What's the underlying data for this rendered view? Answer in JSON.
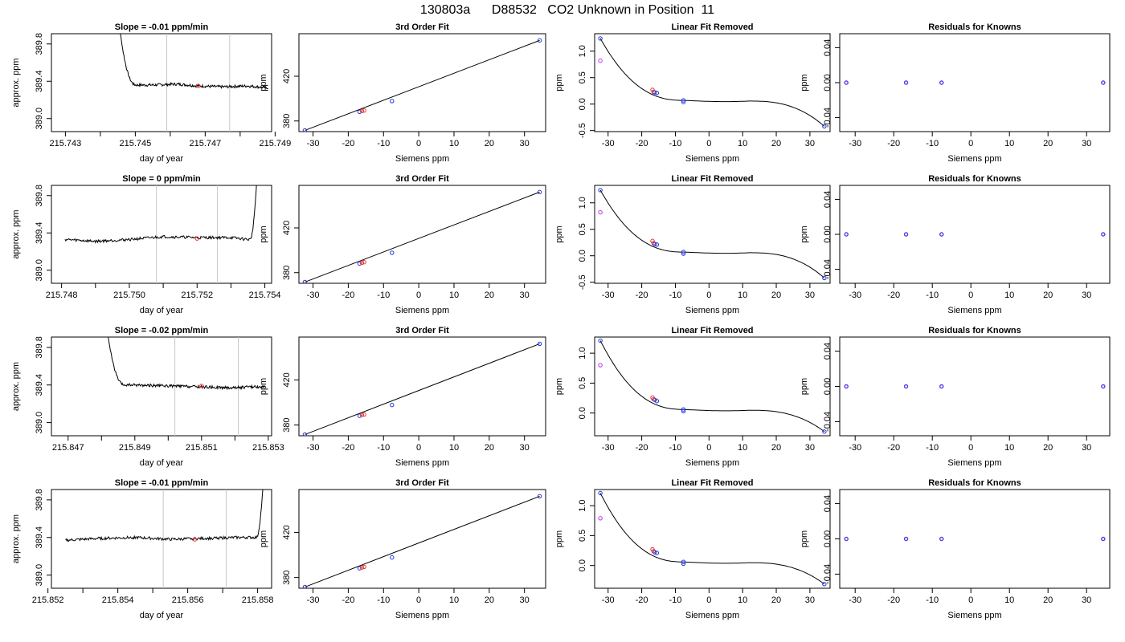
{
  "figure": {
    "title": "130803a      D88532   CO2 Unknown in Position  11"
  },
  "colors": {
    "line": "#000000",
    "marker_red": "#e8332a",
    "marker_blue": "#2233dd",
    "marker_magenta": "#bb33ee",
    "vline": "#c8c8c8"
  },
  "chart_data": [
    {
      "row": 0,
      "col": 0,
      "type": "line",
      "title": "Slope =  -0.01  ppm/min",
      "xlabel": "day of year",
      "ylabel": "approx. ppm",
      "xlim": [
        215.7426,
        215.7489
      ],
      "ylim": [
        388.86,
        389.91
      ],
      "xticks": [
        "215.743",
        "215.745",
        "215.747",
        "215.749"
      ],
      "xtick_values": [
        215.743,
        215.745,
        215.747,
        215.749
      ],
      "xminor": [
        215.744,
        215.746,
        215.748
      ],
      "yticks": [
        "389.0",
        "389.4",
        "389.8"
      ],
      "ytick_values": [
        389.0,
        389.4,
        389.8
      ],
      "trace": {
        "start": 215.7444,
        "end": 215.7488,
        "drop_start": 389.9,
        "plateau": 389.35,
        "rise_end": null,
        "bumps": [
          [
            215.7455,
            389.36
          ],
          [
            215.7462,
            389.37
          ],
          [
            215.7468,
            389.35
          ],
          [
            215.7475,
            389.34
          ],
          [
            215.7482,
            389.35
          ],
          [
            215.7488,
            389.33
          ]
        ]
      },
      "vlines": [
        215.7459,
        215.7477
      ],
      "marker": {
        "x": 215.7468,
        "y": 389.35
      }
    },
    {
      "row": 0,
      "col": 1,
      "type": "scatter",
      "title": "3rd Order Fit",
      "xlabel": "Siemens ppm",
      "ylabel": "ppm",
      "xlim": [
        -34,
        36
      ],
      "ylim": [
        370.5,
        458
      ],
      "xticks": [
        "-30",
        "-20",
        "-10",
        "0",
        "10",
        "20",
        "30"
      ],
      "xtick_values": [
        -30,
        -20,
        -10,
        0,
        10,
        20,
        30
      ],
      "yticks": [
        "380",
        "420"
      ],
      "ytick_values": [
        380,
        420
      ],
      "points": [
        [
          -32.3,
          371.6
        ],
        [
          -16.8,
          388.2
        ],
        [
          -16.1,
          388.9
        ],
        [
          -15.5,
          389.4
        ],
        [
          -7.6,
          397.8
        ],
        [
          34.3,
          452.0
        ]
      ],
      "fit": "line"
    },
    {
      "row": 0,
      "col": 2,
      "type": "scatter",
      "title": "Linear Fit Removed",
      "xlabel": "Siemens ppm",
      "ylabel": "ppm",
      "xlim": [
        -34,
        36
      ],
      "ylim": [
        -0.52,
        1.33
      ],
      "xticks": [
        "-30",
        "-20",
        "-10",
        "0",
        "10",
        "20",
        "30"
      ],
      "xtick_values": [
        -30,
        -20,
        -10,
        0,
        10,
        20,
        30
      ],
      "yticks": [
        "-0.5",
        "0.0",
        "0.5",
        "1.0"
      ],
      "ytick_values": [
        -0.5,
        0.0,
        0.5,
        1.0
      ],
      "points": [
        [
          -32.3,
          1.24
        ],
        [
          -32.3,
          0.82
        ],
        [
          -16.8,
          0.27
        ],
        [
          -16.5,
          0.23
        ],
        [
          -16.1,
          0.22
        ],
        [
          -15.5,
          0.21
        ],
        [
          -7.6,
          0.07
        ],
        [
          -7.6,
          0.04
        ],
        [
          34.3,
          -0.42
        ]
      ],
      "fit": "cubic"
    },
    {
      "row": 0,
      "col": 3,
      "type": "scatter",
      "title": "Residuals for Knowns",
      "xlabel": "Siemens ppm",
      "ylabel": "ppm",
      "xlim": [
        -34,
        36
      ],
      "ylim": [
        -0.056,
        0.056
      ],
      "xticks": [
        "-30",
        "-20",
        "-10",
        "0",
        "10",
        "20",
        "30"
      ],
      "xtick_values": [
        -30,
        -20,
        -10,
        0,
        10,
        20,
        30
      ],
      "yticks": [
        "-0.04",
        "0.00",
        "0.04"
      ],
      "ytick_values": [
        -0.04,
        0.0,
        0.04
      ],
      "points": [
        [
          -32.3,
          0
        ],
        [
          -16.8,
          0
        ],
        [
          -7.6,
          0
        ],
        [
          34.3,
          0
        ]
      ],
      "fit": "none"
    },
    {
      "row": 1,
      "col": 0,
      "type": "line",
      "title": "Slope =  0  ppm/min",
      "xlabel": "day of year",
      "ylabel": "approx. ppm",
      "xlim": [
        215.7477,
        215.7542
      ],
      "ylim": [
        388.86,
        389.91
      ],
      "xticks": [
        "215.748",
        "215.750",
        "215.752",
        "215.754"
      ],
      "xtick_values": [
        215.748,
        215.75,
        215.752,
        215.754
      ],
      "xminor": [
        215.749,
        215.751,
        215.753
      ],
      "yticks": [
        "389.0",
        "389.4",
        "389.8"
      ],
      "ytick_values": [
        389.0,
        389.4,
        389.8
      ],
      "trace": {
        "start": 215.7481,
        "end": 215.7538,
        "drop_start": null,
        "plateau": 389.33,
        "rise_end": 389.91,
        "bumps": [
          [
            215.7481,
            389.33
          ],
          [
            215.749,
            389.31
          ],
          [
            215.75,
            389.33
          ],
          [
            215.751,
            389.36
          ],
          [
            215.752,
            389.35
          ],
          [
            215.753,
            389.35
          ],
          [
            215.7535,
            389.33
          ]
        ]
      },
      "vlines": [
        215.7508,
        215.7526
      ],
      "marker": {
        "x": 215.752,
        "y": 389.34
      }
    },
    {
      "row": 1,
      "col": 1,
      "type": "scatter",
      "title": "3rd Order Fit",
      "xlabel": "Siemens ppm",
      "ylabel": "ppm",
      "xlim": [
        -34,
        36
      ],
      "ylim": [
        370.5,
        458
      ],
      "xticks": [
        "-30",
        "-20",
        "-10",
        "0",
        "10",
        "20",
        "30"
      ],
      "xtick_values": [
        -30,
        -20,
        -10,
        0,
        10,
        20,
        30
      ],
      "yticks": [
        "380",
        "420"
      ],
      "ytick_values": [
        380,
        420
      ],
      "points": [
        [
          -32.3,
          371.6
        ],
        [
          -16.8,
          388.2
        ],
        [
          -16.1,
          388.9
        ],
        [
          -15.5,
          389.4
        ],
        [
          -7.6,
          397.8
        ],
        [
          34.3,
          452.0
        ]
      ],
      "fit": "line"
    },
    {
      "row": 1,
      "col": 2,
      "type": "scatter",
      "title": "Linear Fit Removed",
      "xlabel": "Siemens ppm",
      "ylabel": "ppm",
      "xlim": [
        -34,
        36
      ],
      "ylim": [
        -0.52,
        1.33
      ],
      "xticks": [
        "-30",
        "-20",
        "-10",
        "0",
        "10",
        "20",
        "30"
      ],
      "xtick_values": [
        -30,
        -20,
        -10,
        0,
        10,
        20,
        30
      ],
      "yticks": [
        "-0.5",
        "0.0",
        "0.5",
        "1.0"
      ],
      "ytick_values": [
        -0.5,
        0.0,
        0.5,
        1.0
      ],
      "points": [
        [
          -32.3,
          1.24
        ],
        [
          -32.3,
          0.82
        ],
        [
          -16.8,
          0.28
        ],
        [
          -16.5,
          0.24
        ],
        [
          -16.1,
          0.22
        ],
        [
          -15.5,
          0.21
        ],
        [
          -7.6,
          0.07
        ],
        [
          -7.6,
          0.04
        ],
        [
          34.3,
          -0.42
        ]
      ],
      "fit": "cubic"
    },
    {
      "row": 1,
      "col": 3,
      "type": "scatter",
      "title": "Residuals for Knowns",
      "xlabel": "Siemens ppm",
      "ylabel": "ppm",
      "xlim": [
        -34,
        36
      ],
      "ylim": [
        -0.056,
        0.056
      ],
      "xticks": [
        "-30",
        "-20",
        "-10",
        "0",
        "10",
        "20",
        "30"
      ],
      "xtick_values": [
        -30,
        -20,
        -10,
        0,
        10,
        20,
        30
      ],
      "yticks": [
        "-0.04",
        "0.00",
        "0.04"
      ],
      "ytick_values": [
        -0.04,
        0.0,
        0.04
      ],
      "points": [
        [
          -32.3,
          0
        ],
        [
          -16.8,
          0
        ],
        [
          -7.6,
          0
        ],
        [
          34.3,
          0
        ]
      ],
      "fit": "none"
    },
    {
      "row": 2,
      "col": 0,
      "type": "line",
      "title": "Slope =  -0.02  ppm/min",
      "xlabel": "day of year",
      "ylabel": "approx. ppm",
      "xlim": [
        215.8465,
        215.8531
      ],
      "ylim": [
        388.86,
        389.91
      ],
      "xticks": [
        "215.847",
        "215.849",
        "215.851",
        "215.853"
      ],
      "xtick_values": [
        215.847,
        215.849,
        215.851,
        215.853
      ],
      "xminor": [
        215.848,
        215.85,
        215.852
      ],
      "yticks": [
        "389.0",
        "389.4",
        "389.8"
      ],
      "ytick_values": [
        389.0,
        389.4,
        389.8
      ],
      "trace": {
        "start": 215.848,
        "end": 215.8529,
        "drop_start": 389.9,
        "plateau": 389.39,
        "rise_end": null,
        "bumps": [
          [
            215.849,
            389.4
          ],
          [
            215.85,
            389.39
          ],
          [
            215.851,
            389.38
          ],
          [
            215.8518,
            389.37
          ],
          [
            215.8525,
            389.38
          ],
          [
            215.8529,
            389.38
          ]
        ]
      },
      "vlines": [
        215.8502,
        215.8521
      ],
      "marker": {
        "x": 215.851,
        "y": 389.39
      }
    },
    {
      "row": 2,
      "col": 1,
      "type": "scatter",
      "title": "3rd Order Fit",
      "xlabel": "Siemens ppm",
      "ylabel": "ppm",
      "xlim": [
        -34,
        36
      ],
      "ylim": [
        370.5,
        458
      ],
      "xticks": [
        "-30",
        "-20",
        "-10",
        "0",
        "10",
        "20",
        "30"
      ],
      "xtick_values": [
        -30,
        -20,
        -10,
        0,
        10,
        20,
        30
      ],
      "yticks": [
        "380",
        "420"
      ],
      "ytick_values": [
        380,
        420
      ],
      "points": [
        [
          -32.3,
          371.6
        ],
        [
          -16.8,
          388.2
        ],
        [
          -16.1,
          388.9
        ],
        [
          -15.5,
          389.4
        ],
        [
          -7.6,
          397.8
        ],
        [
          34.3,
          452.0
        ]
      ],
      "fit": "line"
    },
    {
      "row": 2,
      "col": 2,
      "type": "scatter",
      "title": "Linear Fit Removed",
      "xlabel": "Siemens ppm",
      "ylabel": "ppm",
      "xlim": [
        -34,
        36
      ],
      "ylim": [
        -0.38,
        1.27
      ],
      "xticks": [
        "-30",
        "-20",
        "-10",
        "0",
        "10",
        "20",
        "30"
      ],
      "xtick_values": [
        -30,
        -20,
        -10,
        0,
        10,
        20,
        30
      ],
      "yticks": [
        "0.0",
        "0.5",
        "1.0"
      ],
      "ytick_values": [
        0.0,
        0.5,
        1.0
      ],
      "points": [
        [
          -32.3,
          1.21
        ],
        [
          -32.3,
          0.8
        ],
        [
          -16.8,
          0.26
        ],
        [
          -16.5,
          0.23
        ],
        [
          -16.1,
          0.22
        ],
        [
          -15.5,
          0.2
        ],
        [
          -7.6,
          0.06
        ],
        [
          -7.6,
          0.03
        ],
        [
          34.3,
          -0.31
        ]
      ],
      "fit": "cubic"
    },
    {
      "row": 2,
      "col": 3,
      "type": "scatter",
      "title": "Residuals for Knowns",
      "xlabel": "Siemens ppm",
      "ylabel": "ppm",
      "xlim": [
        -34,
        36
      ],
      "ylim": [
        -0.056,
        0.056
      ],
      "xticks": [
        "-30",
        "-20",
        "-10",
        "0",
        "10",
        "20",
        "30"
      ],
      "xtick_values": [
        -30,
        -20,
        -10,
        0,
        10,
        20,
        30
      ],
      "yticks": [
        "-0.04",
        "0.00",
        "0.04"
      ],
      "ytick_values": [
        -0.04,
        0.0,
        0.04
      ],
      "points": [
        [
          -32.3,
          0
        ],
        [
          -16.8,
          0
        ],
        [
          -7.6,
          0
        ],
        [
          34.3,
          0
        ]
      ],
      "fit": "none"
    },
    {
      "row": 3,
      "col": 0,
      "type": "line",
      "title": "Slope =  -0.01  ppm/min",
      "xlabel": "day of year",
      "ylabel": "approx. ppm",
      "xlim": [
        215.8521,
        215.8584
      ],
      "ylim": [
        388.86,
        389.91
      ],
      "xticks": [
        "215.852",
        "215.854",
        "215.856",
        "215.858"
      ],
      "xtick_values": [
        215.852,
        215.854,
        215.856,
        215.858
      ],
      "xminor": [
        215.853,
        215.855,
        215.857
      ],
      "yticks": [
        "389.0",
        "389.4",
        "389.8"
      ],
      "ytick_values": [
        389.0,
        389.4,
        389.8
      ],
      "trace": {
        "start": 215.8525,
        "end": 215.8582,
        "drop_start": null,
        "plateau": 389.38,
        "rise_end": 389.91,
        "bumps": [
          [
            215.8525,
            389.37
          ],
          [
            215.8535,
            389.39
          ],
          [
            215.8545,
            389.4
          ],
          [
            215.8555,
            389.38
          ],
          [
            215.8565,
            389.39
          ],
          [
            215.8575,
            389.4
          ],
          [
            215.8579,
            389.4
          ]
        ]
      },
      "vlines": [
        215.8553,
        215.8571
      ],
      "marker": {
        "x": 215.8562,
        "y": 389.38
      }
    },
    {
      "row": 3,
      "col": 1,
      "type": "scatter",
      "title": "3rd Order Fit",
      "xlabel": "Siemens ppm",
      "ylabel": "ppm",
      "xlim": [
        -34,
        36
      ],
      "ylim": [
        370.5,
        458
      ],
      "xticks": [
        "-30",
        "-20",
        "-10",
        "0",
        "10",
        "20",
        "30"
      ],
      "xtick_values": [
        -30,
        -20,
        -10,
        0,
        10,
        20,
        30
      ],
      "yticks": [
        "380",
        "420"
      ],
      "ytick_values": [
        380,
        420
      ],
      "points": [
        [
          -32.3,
          371.6
        ],
        [
          -16.8,
          388.2
        ],
        [
          -16.1,
          388.9
        ],
        [
          -15.5,
          389.4
        ],
        [
          -7.6,
          397.8
        ],
        [
          34.3,
          452.0
        ]
      ],
      "fit": "line"
    },
    {
      "row": 3,
      "col": 2,
      "type": "scatter",
      "title": "Linear Fit Removed",
      "xlabel": "Siemens ppm",
      "ylabel": "ppm",
      "xlim": [
        -34,
        36
      ],
      "ylim": [
        -0.38,
        1.27
      ],
      "xticks": [
        "-30",
        "-20",
        "-10",
        "0",
        "10",
        "20",
        "30"
      ],
      "xtick_values": [
        -30,
        -20,
        -10,
        0,
        10,
        20,
        30
      ],
      "yticks": [
        "0.0",
        "0.5",
        "1.0"
      ],
      "ytick_values": [
        0.0,
        0.5,
        1.0
      ],
      "points": [
        [
          -32.3,
          1.21
        ],
        [
          -32.3,
          0.79
        ],
        [
          -16.8,
          0.27
        ],
        [
          -16.5,
          0.24
        ],
        [
          -16.1,
          0.22
        ],
        [
          -15.5,
          0.21
        ],
        [
          -7.6,
          0.06
        ],
        [
          -7.6,
          0.03
        ],
        [
          34.3,
          -0.31
        ]
      ],
      "fit": "cubic"
    },
    {
      "row": 3,
      "col": 3,
      "type": "scatter",
      "title": "Residuals for Knowns",
      "xlabel": "Siemens ppm",
      "ylabel": "ppm",
      "xlim": [
        -34,
        36
      ],
      "ylim": [
        -0.056,
        0.056
      ],
      "xticks": [
        "-30",
        "-20",
        "-10",
        "0",
        "10",
        "20",
        "30"
      ],
      "xtick_values": [
        -30,
        -20,
        -10,
        0,
        10,
        20,
        30
      ],
      "yticks": [
        "-0.04",
        "0.00",
        "0.04"
      ],
      "ytick_values": [
        -0.04,
        0.0,
        0.04
      ],
      "points": [
        [
          -32.3,
          0
        ],
        [
          -16.8,
          0
        ],
        [
          -7.6,
          0
        ],
        [
          34.3,
          0
        ]
      ],
      "fit": "none"
    }
  ]
}
